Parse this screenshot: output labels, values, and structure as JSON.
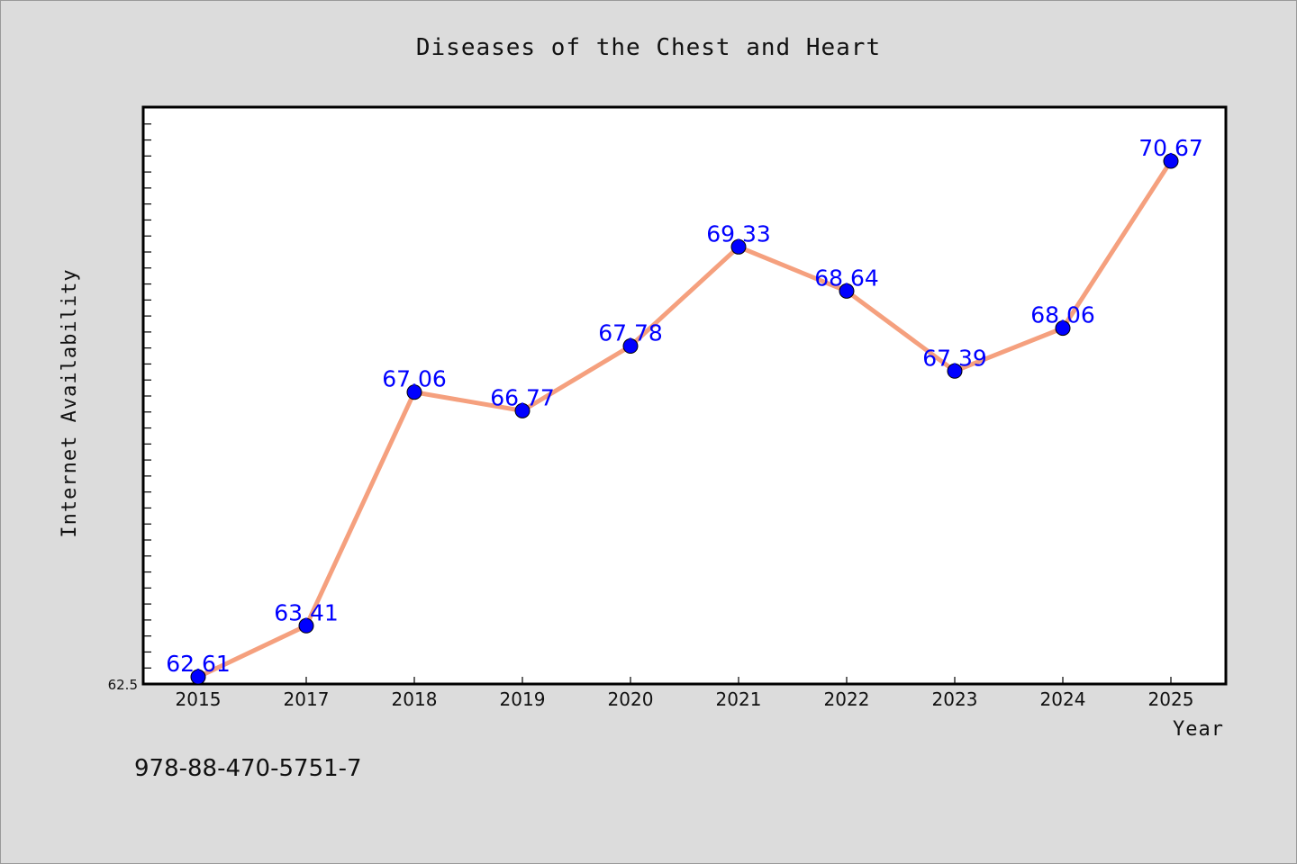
{
  "chart_data": {
    "type": "line",
    "title": "Diseases of the Chest and Heart",
    "xlabel": "Year",
    "ylabel": "Internet Availability",
    "categories": [
      "2015",
      "2017",
      "2018",
      "2019",
      "2020",
      "2021",
      "2022",
      "2023",
      "2024",
      "2025"
    ],
    "series": [
      {
        "values": [
          62.61,
          63.41,
          67.06,
          66.77,
          67.78,
          69.33,
          68.64,
          67.39,
          68.06,
          70.67
        ]
      }
    ],
    "data_labels": [
      "62.61",
      "63.41",
      "67.06",
      "66.77",
      "67.78",
      "69.33",
      "68.64",
      "67.39",
      "68.06",
      "70.67"
    ],
    "ylim": [
      62.5,
      71.5
    ],
    "y_tick_labels": [
      "62.5"
    ],
    "grid": false,
    "legend": "none"
  },
  "colors": {
    "background": "#dcdcdc",
    "plot_area": "#ffffff",
    "line": "#f5a07e",
    "marker": "#0000ff",
    "data_label": "#0000ff"
  },
  "footer_text": "978-88-470-5751-7"
}
